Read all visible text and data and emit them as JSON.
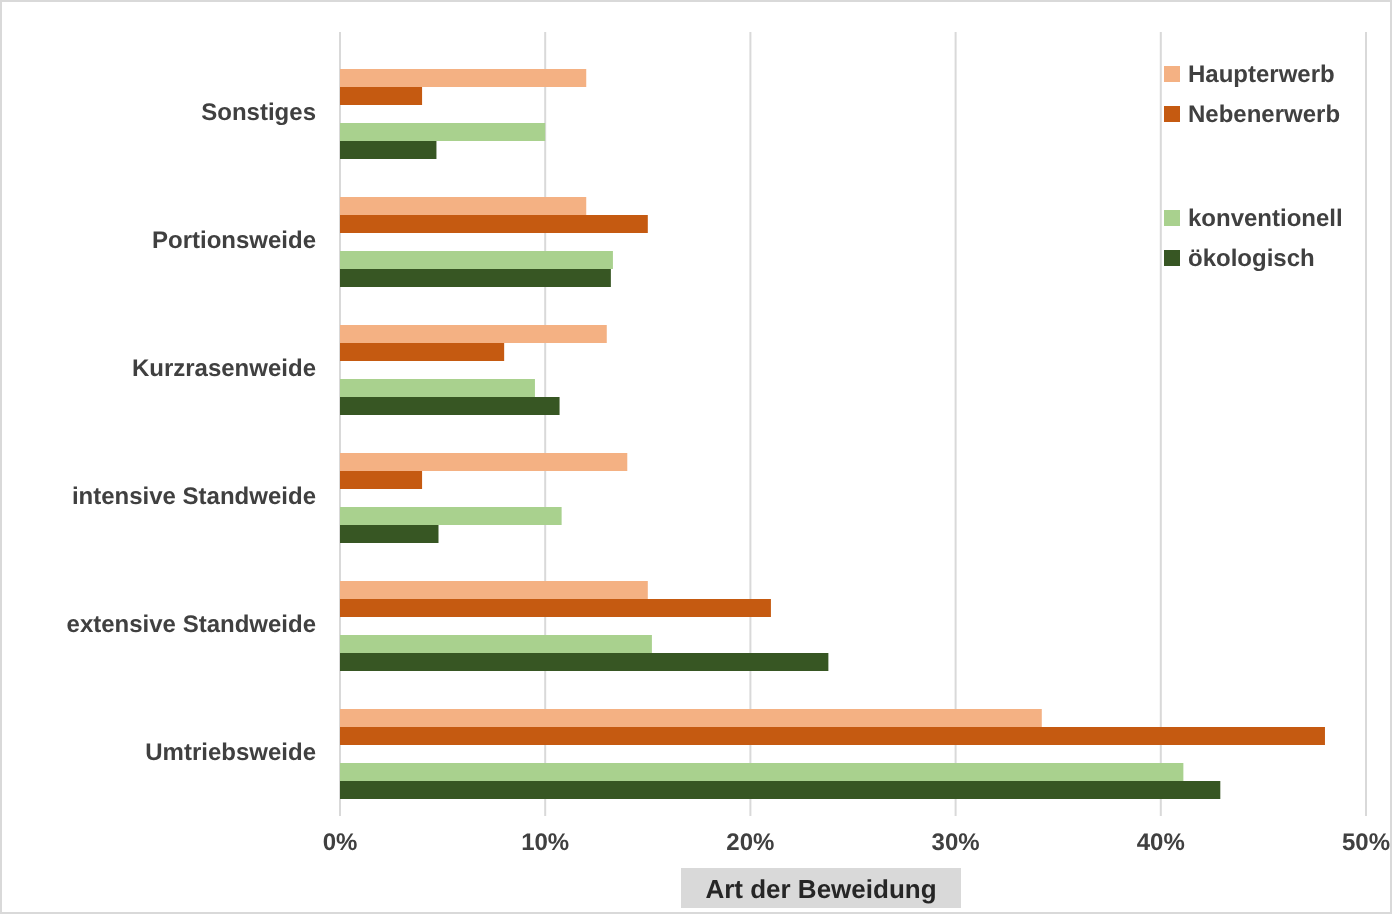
{
  "chart_data": {
    "type": "bar",
    "orientation": "horizontal",
    "xlabel": "Art der Beweidung",
    "categories": [
      "Sonstiges",
      "Portionsweide",
      "Kurzrasenweide",
      "intensive Standweide",
      "extensive Standweide",
      "Umtriebsweide"
    ],
    "series": [
      {
        "name": "Haupterwerb",
        "color": "#f4b183",
        "values": [
          12,
          12,
          13,
          14,
          15,
          34.2
        ]
      },
      {
        "name": "Nebenerwerb",
        "color": "#c55a11",
        "values": [
          4,
          15,
          8,
          4,
          21,
          48
        ]
      },
      {
        "name": "konventionell",
        "color": "#a9d18e",
        "values": [
          10,
          13.3,
          9.5,
          10.8,
          15.2,
          41.1
        ]
      },
      {
        "name": "ökologisch",
        "color": "#375623",
        "values": [
          4.7,
          13.2,
          10.7,
          4.8,
          23.8,
          42.9
        ]
      }
    ],
    "xlim": [
      0,
      50
    ],
    "xticks": [
      {
        "value": 0,
        "label": "0%"
      },
      {
        "value": 10,
        "label": "10%"
      },
      {
        "value": 20,
        "label": "20%"
      },
      {
        "value": 30,
        "label": "30%"
      },
      {
        "value": 40,
        "label": "40%"
      },
      {
        "value": 50,
        "label": "50%"
      }
    ],
    "grid": "x",
    "legend": "top right"
  }
}
